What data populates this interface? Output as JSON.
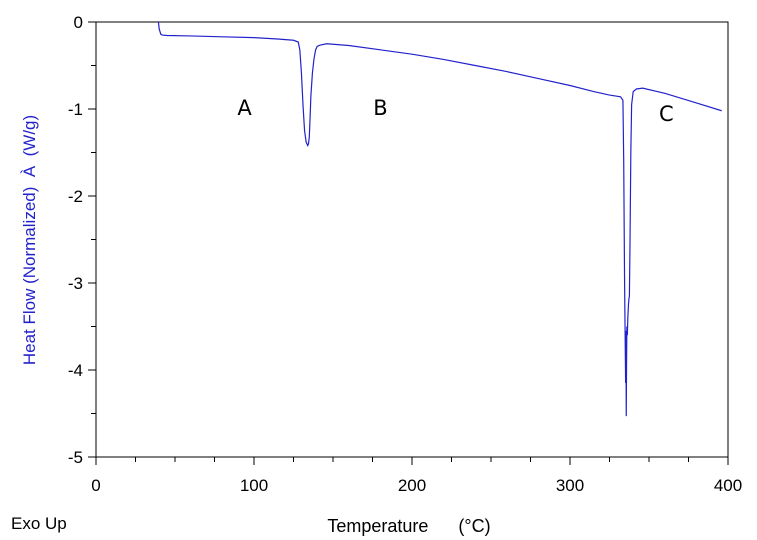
{
  "chart_data": {
    "type": "line",
    "title": "",
    "xlabel": "Temperature      (°C)",
    "ylabel": "Heat Flow (Normalized)  À  (W/g)",
    "corner_note": "Exo Up",
    "xlim": [
      0,
      400
    ],
    "ylim": [
      -5,
      0
    ],
    "x_ticks": [
      0,
      100,
      200,
      300,
      400
    ],
    "y_ticks": [
      0,
      -1,
      -2,
      -3,
      -4,
      -5
    ],
    "x_tick_labels": [
      "0",
      "100",
      "200",
      "300",
      "400"
    ],
    "y_tick_labels": [
      "0",
      "-1",
      "-2",
      "-3",
      "-4",
      "-5"
    ],
    "grid": false,
    "colors": {
      "line": "#2222cc",
      "ylabel": "#2222cc",
      "axis": "#000000"
    },
    "annotations": [
      {
        "text": "A",
        "x": 94,
        "y": -1.0
      },
      {
        "text": "B",
        "x": 180,
        "y": -1.0
      },
      {
        "text": "C",
        "x": 361,
        "y": -1.07
      }
    ],
    "series": [
      {
        "x": [
          39.5,
          40,
          41,
          42,
          45,
          60,
          80,
          100,
          115,
          125,
          128,
          129,
          130,
          131,
          132,
          133,
          134,
          134.5,
          135,
          135.5,
          136,
          137,
          138,
          139,
          140,
          142,
          146,
          160,
          180,
          200,
          220,
          240,
          260,
          280,
          300,
          315,
          325,
          332,
          333.5,
          334,
          334.5,
          335,
          335.2,
          335.4,
          335.6,
          335.8,
          336,
          336.3,
          336.6,
          337,
          337.3,
          337.6,
          338,
          338.5,
          339,
          340,
          342,
          346,
          360,
          380,
          396
        ],
        "y": [
          0.0,
          -0.08,
          -0.14,
          -0.15,
          -0.155,
          -0.16,
          -0.17,
          -0.18,
          -0.195,
          -0.21,
          -0.23,
          -0.32,
          -0.58,
          -0.95,
          -1.25,
          -1.38,
          -1.42,
          -1.4,
          -1.32,
          -1.1,
          -0.85,
          -0.58,
          -0.42,
          -0.32,
          -0.28,
          -0.265,
          -0.25,
          -0.27,
          -0.32,
          -0.37,
          -0.43,
          -0.5,
          -0.57,
          -0.65,
          -0.73,
          -0.8,
          -0.84,
          -0.86,
          -0.9,
          -1.6,
          -2.9,
          -3.8,
          -4.15,
          -3.55,
          -4.53,
          -3.9,
          -3.5,
          -3.6,
          -3.4,
          -3.25,
          -3.18,
          -3.15,
          -2.5,
          -1.5,
          -0.95,
          -0.8,
          -0.77,
          -0.76,
          -0.82,
          -0.93,
          -1.02
        ]
      }
    ]
  }
}
